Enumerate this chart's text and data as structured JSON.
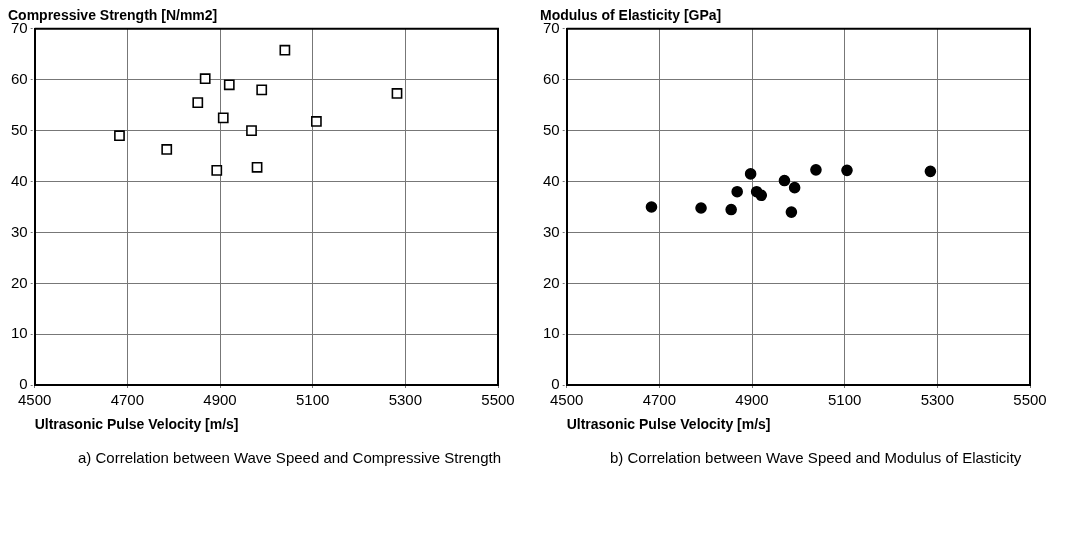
{
  "chart_data": [
    {
      "type": "scatter",
      "title": "Compressive Strength [N/mm2]",
      "xlabel": "Ultrasonic Pulse Velocity [m/s]",
      "annotations": [
        "a) Correlation between Wave Speed and Compressive Strength"
      ],
      "x": [
        4683,
        4785,
        4852,
        4868,
        4893,
        4907,
        4920,
        4968,
        4980,
        4990,
        5040,
        5108,
        5282
      ],
      "values": [
        49,
        46.3,
        55.5,
        60.2,
        42.2,
        52.5,
        59,
        50,
        42.8,
        58,
        65.8,
        51.8,
        57.3
      ],
      "color": "#000000",
      "marker": "square",
      "xlim": [
        4500,
        5500
      ],
      "xticks": [
        4500,
        4700,
        4900,
        5100,
        5300,
        5500
      ],
      "ylim": [
        0,
        70
      ],
      "yticks": [
        0,
        10,
        20,
        30,
        40,
        50,
        60,
        70
      ],
      "grid": true,
      "legend": false
    },
    {
      "type": "scatter",
      "title": "Modulus of Elasticity [GPa]",
      "xlabel": "Ultrasonic Pulse Velocity [m/s]",
      "annotations": [
        "b) Correlation between Wave Speed and Modulus of Elasticity"
      ],
      "x": [
        4683,
        4790,
        4855,
        4868,
        4897,
        4910,
        4920,
        4970,
        4985,
        4992,
        5038,
        5105,
        5285
      ],
      "values": [
        35,
        34.8,
        34.5,
        38,
        41.5,
        38,
        37.3,
        40.2,
        34,
        38.8,
        42.3,
        42.2,
        42
      ],
      "color": "#000000",
      "marker": "circle",
      "xlim": [
        4500,
        5500
      ],
      "xticks": [
        4500,
        4700,
        4900,
        5100,
        5300,
        5500
      ],
      "ylim": [
        0,
        70
      ],
      "yticks": [
        0,
        10,
        20,
        30,
        40,
        50,
        60,
        70
      ],
      "grid": true,
      "legend": false
    }
  ]
}
